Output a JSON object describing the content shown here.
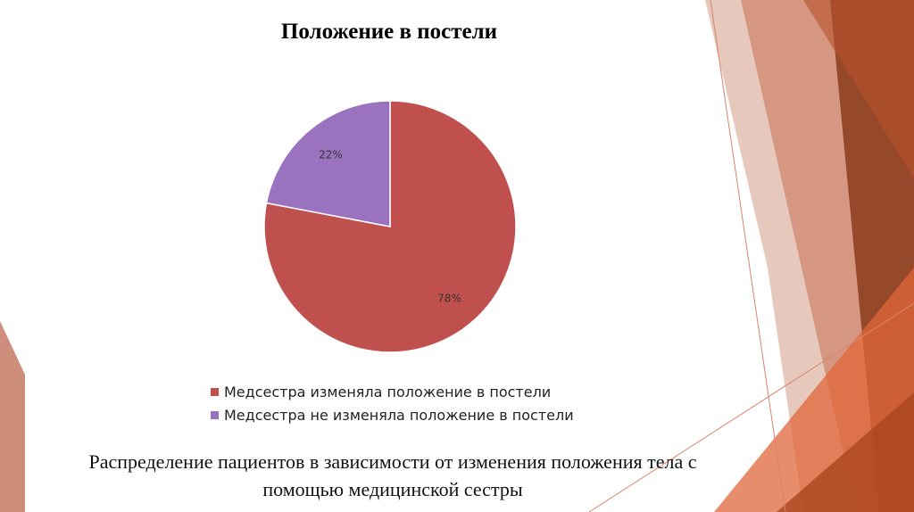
{
  "chart_data": {
    "type": "pie",
    "title": "Положение в постели",
    "categories": [
      "Медсестра изменяла положение в постели",
      "Медсестра не изменяла положение в постели"
    ],
    "values": [
      78,
      22
    ],
    "data_labels": [
      "78%",
      "22%"
    ],
    "colors": [
      "#c0504d",
      "#9b72be"
    ],
    "legend_position": "bottom"
  },
  "caption": {
    "line1": "Распределение пациентов в зависимости от изменения положения тела с",
    "line2": "помощью медицинской сестры"
  }
}
